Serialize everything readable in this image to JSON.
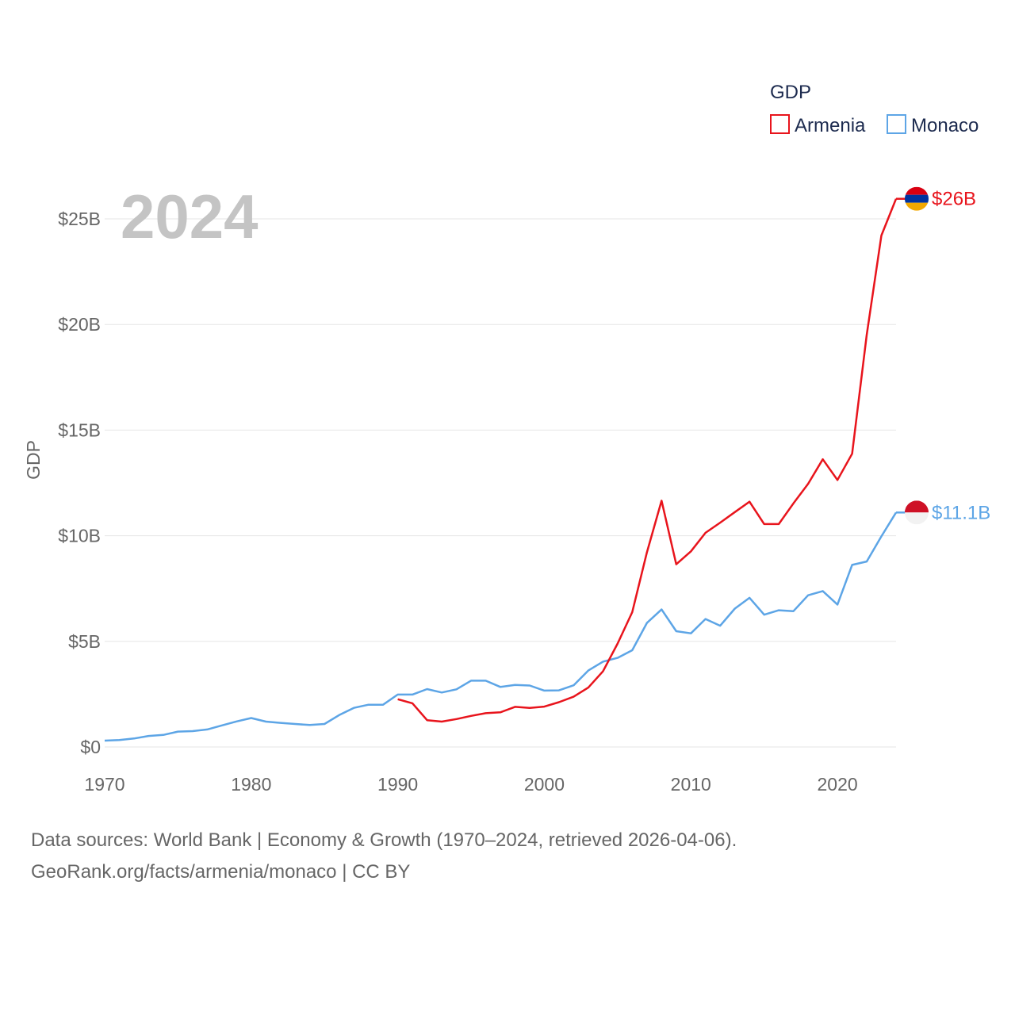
{
  "chart_data": {
    "type": "line",
    "title": "",
    "year_label": "2024",
    "xlabel": "",
    "ylabel": "GDP",
    "xlim": [
      1970,
      2024
    ],
    "ylim": [
      0,
      26
    ],
    "x_ticks": [
      1970,
      1980,
      1990,
      2000,
      2010,
      2020
    ],
    "y_ticks": [
      0,
      5,
      10,
      15,
      20,
      25
    ],
    "y_tick_labels": [
      "$0",
      "$5B",
      "$10B",
      "$15B",
      "$20B",
      "$25B"
    ],
    "legend": {
      "title": "GDP",
      "placement": "top-right"
    },
    "series": [
      {
        "name": "Armenia",
        "color": "#e8141c",
        "end_label": "$26B",
        "flag": "armenia-flag",
        "x": [
          1990,
          1991,
          1992,
          1993,
          1994,
          1995,
          1996,
          1997,
          1998,
          1999,
          2000,
          2001,
          2002,
          2003,
          2004,
          2005,
          2006,
          2007,
          2008,
          2009,
          2010,
          2011,
          2012,
          2013,
          2014,
          2015,
          2016,
          2017,
          2018,
          2019,
          2020,
          2021,
          2022,
          2023,
          2024
        ],
        "values": [
          2.26,
          2.07,
          1.27,
          1.2,
          1.32,
          1.47,
          1.6,
          1.64,
          1.9,
          1.85,
          1.91,
          2.12,
          2.38,
          2.81,
          3.58,
          4.9,
          6.38,
          9.21,
          11.66,
          8.65,
          9.26,
          10.14,
          10.62,
          11.12,
          11.61,
          10.55,
          10.55,
          11.53,
          12.46,
          13.62,
          12.64,
          13.88,
          19.51,
          24.21,
          25.95
        ]
      },
      {
        "name": "Monaco",
        "color": "#5da5e6",
        "end_label": "$11.1B",
        "flag": "monaco-flag",
        "x": [
          1970,
          1971,
          1972,
          1973,
          1974,
          1975,
          1976,
          1977,
          1978,
          1979,
          1980,
          1981,
          1982,
          1983,
          1984,
          1985,
          1986,
          1987,
          1988,
          1989,
          1990,
          1991,
          1992,
          1993,
          1994,
          1995,
          1996,
          1997,
          1998,
          1999,
          2000,
          2001,
          2002,
          2003,
          2004,
          2005,
          2006,
          2007,
          2008,
          2009,
          2010,
          2011,
          2012,
          2013,
          2014,
          2015,
          2016,
          2017,
          2018,
          2019,
          2020,
          2021,
          2022,
          2023,
          2024
        ],
        "values": [
          0.3,
          0.33,
          0.4,
          0.52,
          0.57,
          0.73,
          0.75,
          0.83,
          1.02,
          1.21,
          1.37,
          1.2,
          1.14,
          1.09,
          1.04,
          1.09,
          1.51,
          1.85,
          2.0,
          2.0,
          2.48,
          2.48,
          2.74,
          2.58,
          2.73,
          3.14,
          3.14,
          2.84,
          2.94,
          2.91,
          2.67,
          2.68,
          2.92,
          3.62,
          4.04,
          4.22,
          4.58,
          5.87,
          6.51,
          5.48,
          5.38,
          6.06,
          5.74,
          6.55,
          7.06,
          6.26,
          6.47,
          6.43,
          7.18,
          7.38,
          6.74,
          8.62,
          8.78,
          9.97,
          11.1
        ]
      }
    ]
  },
  "footer": {
    "line1": "Data sources: World Bank | Economy & Growth (1970–2024, retrieved 2026-04-06).",
    "line2": "GeoRank.org/facts/armenia/monaco | CC BY"
  },
  "colors": {
    "grid": "#e6e6e6",
    "tick_text": "#666666",
    "legend_text": "#1d2b4f",
    "year_text": "#c4c4c4"
  }
}
